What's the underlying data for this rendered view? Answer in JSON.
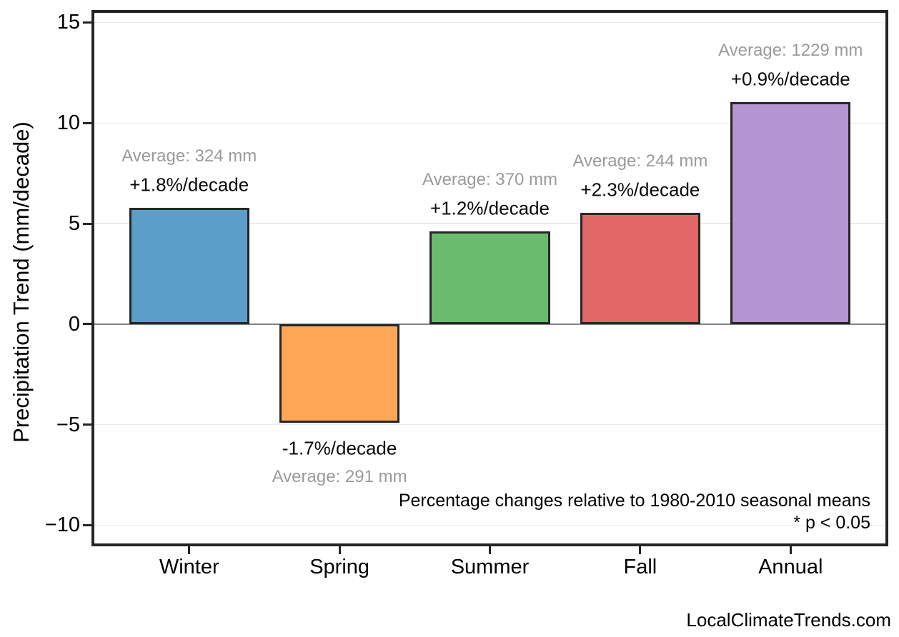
{
  "chart_data": {
    "type": "bar",
    "categories": [
      "Winter",
      "Spring",
      "Summer",
      "Fall",
      "Annual"
    ],
    "values": [
      5.8,
      -4.9,
      4.6,
      5.55,
      11.05
    ],
    "bar_colors": [
      "#5B9EC9",
      "#FFA757",
      "#68BC6C",
      "#E26767",
      "#B495D1"
    ],
    "bar_edge_color": "#262626",
    "annotations": [
      {
        "average": "Average: 324 mm",
        "trend": "+1.8%/decade"
      },
      {
        "average": "Average: 291 mm",
        "trend": "-1.7%/decade"
      },
      {
        "average": "Average: 370 mm",
        "trend": "+1.2%/decade"
      },
      {
        "average": "Average: 244 mm",
        "trend": "+2.3%/decade"
      },
      {
        "average": "Average: 1229 mm",
        "trend": "+0.9%/decade"
      }
    ],
    "ylabel": "Precipitation Trend (mm/decade)",
    "yticks": [
      15,
      10,
      5,
      0,
      -5,
      -10
    ],
    "ylim": [
      -11.05,
      15.62
    ],
    "grid": true,
    "legend": "none",
    "notes": {
      "line1": "Percentage changes relative to 1980-2010 seasonal means",
      "line2": "* p < 0.05"
    }
  },
  "watermark": "LocalClimateTrends.com",
  "colors": {
    "zero_line": "#848484",
    "gridline": "#ebebeb",
    "axis_frame": "#242424",
    "annotation_average_text": "#9a9a9a",
    "annotation_trend_text": "#0a0a0a"
  }
}
